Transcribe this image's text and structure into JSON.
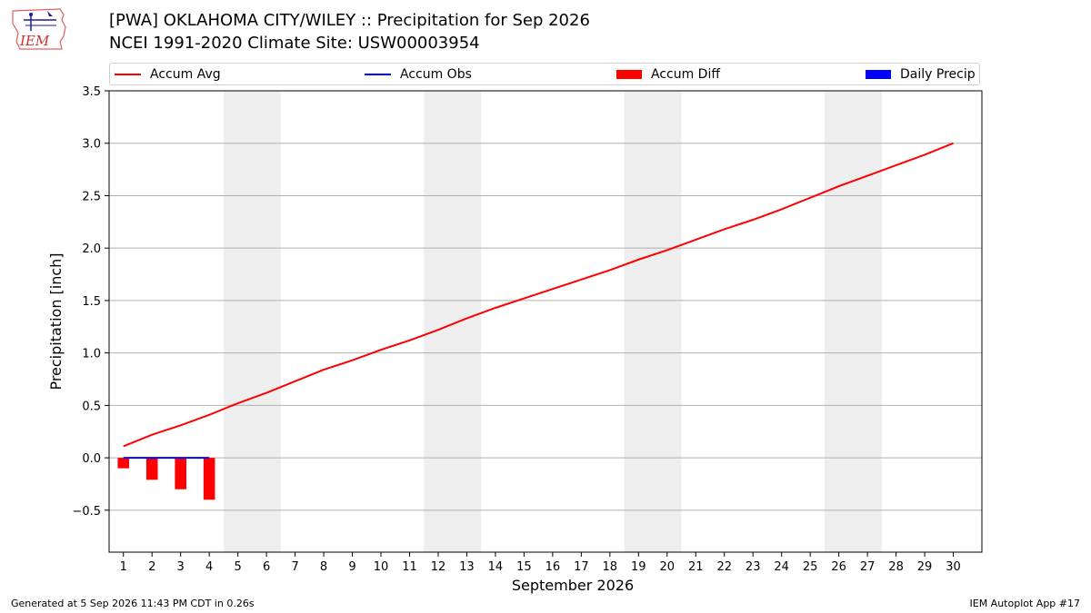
{
  "header": {
    "title_line1": "[PWA] OKLAHOMA CITY/WILEY :: Precipitation for Sep 2026",
    "title_line2": "NCEI 1991-2020 Climate Site: USW00003954",
    "logo_text": "IEM"
  },
  "footer": {
    "generated": "Generated at 5 Sep 2026 11:43 PM CDT in 0.26s",
    "app": "IEM Autoplot App #17"
  },
  "colors": {
    "accum_avg": "#ff0000",
    "accum_obs": "#0000ff",
    "accum_diff": "#ff0000",
    "daily_precip": "#0000ff",
    "weekend_shade": "#eeeeee",
    "grid": "#b0b0b0"
  },
  "chart_data": {
    "type": "line",
    "title": "[PWA] OKLAHOMA CITY/WILEY :: Precipitation for Sep 2026",
    "subtitle": "NCEI 1991-2020 Climate Site: USW00003954",
    "xlabel": "September 2026",
    "ylabel": "Precipitation [inch]",
    "xlim": [
      0.5,
      31.0
    ],
    "ylim": [
      -0.9,
      3.5
    ],
    "yticks": [
      -0.5,
      0.0,
      0.5,
      1.0,
      1.5,
      2.0,
      2.5,
      3.0,
      3.5
    ],
    "ytick_labels": [
      "−0.5",
      "0.0",
      "0.5",
      "1.0",
      "1.5",
      "2.0",
      "2.5",
      "3.0",
      "3.5"
    ],
    "x": [
      1,
      2,
      3,
      4,
      5,
      6,
      7,
      8,
      9,
      10,
      11,
      12,
      13,
      14,
      15,
      16,
      17,
      18,
      19,
      20,
      21,
      22,
      23,
      24,
      25,
      26,
      27,
      28,
      29,
      30
    ],
    "xtick_labels": [
      "1",
      "2",
      "3",
      "4",
      "5",
      "6",
      "7",
      "8",
      "9",
      "10",
      "11",
      "12",
      "13",
      "14",
      "15",
      "16",
      "17",
      "18",
      "19",
      "20",
      "21",
      "22",
      "23",
      "24",
      "25",
      "26",
      "27",
      "28",
      "29",
      "30"
    ],
    "grid": "horizontal",
    "legend_position": "top",
    "weekend_shading": [
      [
        4.5,
        6.5
      ],
      [
        11.5,
        13.5
      ],
      [
        18.5,
        20.5
      ],
      [
        25.5,
        27.5
      ]
    ],
    "legend": [
      "Accum Avg",
      "Accum Obs",
      "Accum Diff",
      "Daily Precip"
    ],
    "series": [
      {
        "name": "Accum Avg",
        "type": "line",
        "x": [
          1,
          2,
          3,
          4,
          5,
          6,
          7,
          8,
          9,
          10,
          11,
          12,
          13,
          14,
          15,
          16,
          17,
          18,
          19,
          20,
          21,
          22,
          23,
          24,
          25,
          26,
          27,
          28,
          29,
          30
        ],
        "values": [
          0.11,
          0.22,
          0.31,
          0.41,
          0.52,
          0.62,
          0.73,
          0.84,
          0.93,
          1.03,
          1.12,
          1.22,
          1.33,
          1.43,
          1.52,
          1.61,
          1.7,
          1.79,
          1.89,
          1.98,
          2.08,
          2.18,
          2.27,
          2.37,
          2.48,
          2.59,
          2.69,
          2.79,
          2.89,
          3.0
        ]
      },
      {
        "name": "Accum Obs",
        "type": "line",
        "x": [
          1,
          2,
          3,
          4
        ],
        "values": [
          0.0,
          0.0,
          0.0,
          0.0
        ]
      },
      {
        "name": "Accum Diff",
        "type": "bar",
        "x": [
          1,
          2,
          3,
          4
        ],
        "values": [
          -0.1,
          -0.21,
          -0.3,
          -0.4
        ]
      },
      {
        "name": "Daily Precip",
        "type": "bar",
        "x": [
          1,
          2,
          3,
          4
        ],
        "values": [
          0.0,
          0.0,
          0.0,
          0.0
        ]
      }
    ]
  }
}
